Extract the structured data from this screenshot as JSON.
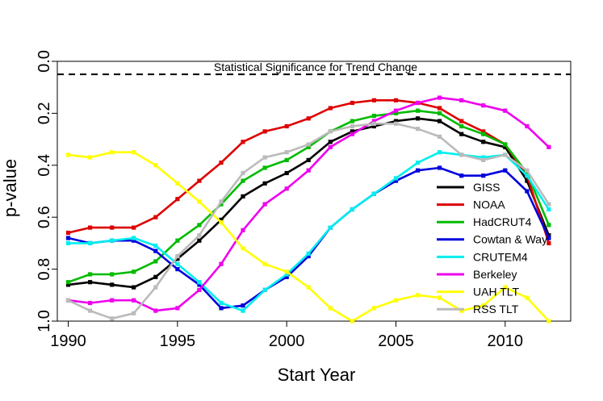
{
  "chart_data": {
    "type": "line",
    "title": "",
    "xlabel": "Start Year",
    "ylabel": "p-value",
    "xlim": [
      1989.5,
      2013
    ],
    "ylim": [
      0.0,
      1.0
    ],
    "y_reversed": true,
    "x_ticks": [
      1990,
      1995,
      2000,
      2005,
      2010
    ],
    "y_ticks": [
      0.0,
      0.2,
      0.4,
      0.6,
      0.8,
      1.0
    ],
    "y_tick_labels": [
      "0.0",
      "0.2",
      "0.4",
      "0.6",
      "0.8",
      "1.0"
    ],
    "grid": false,
    "legend_position": "bottom-right",
    "x": [
      1990,
      1991,
      1992,
      1993,
      1994,
      1995,
      1996,
      1997,
      1998,
      1999,
      2000,
      2001,
      2002,
      2003,
      2004,
      2005,
      2006,
      2007,
      2008,
      2009,
      2010,
      2011,
      2012
    ],
    "reference_line": {
      "y": 0.05,
      "style": "dashed",
      "label": "Statistical Significance for Trend Change"
    },
    "series": [
      {
        "name": "GISS",
        "color": "#000000",
        "values": [
          0.86,
          0.85,
          0.86,
          0.87,
          0.83,
          0.76,
          0.69,
          0.61,
          0.52,
          0.47,
          0.43,
          0.38,
          0.31,
          0.27,
          0.25,
          0.23,
          0.22,
          0.23,
          0.28,
          0.31,
          0.33,
          0.46,
          0.67
        ]
      },
      {
        "name": "NOAA",
        "color": "#dd0000",
        "values": [
          0.66,
          0.64,
          0.64,
          0.64,
          0.6,
          0.53,
          0.46,
          0.39,
          0.31,
          0.27,
          0.25,
          0.22,
          0.18,
          0.16,
          0.15,
          0.15,
          0.16,
          0.18,
          0.23,
          0.27,
          0.32,
          0.44,
          0.7
        ]
      },
      {
        "name": "HadCRUT4",
        "color": "#00bb00",
        "values": [
          0.85,
          0.82,
          0.82,
          0.81,
          0.77,
          0.69,
          0.63,
          0.55,
          0.46,
          0.41,
          0.38,
          0.33,
          0.27,
          0.23,
          0.21,
          0.2,
          0.19,
          0.2,
          0.25,
          0.28,
          0.32,
          0.43,
          0.63
        ]
      },
      {
        "name": "Cowtan & Way",
        "color": "#0000dd",
        "values": [
          0.68,
          0.7,
          0.69,
          0.69,
          0.73,
          0.8,
          0.86,
          0.95,
          0.94,
          0.88,
          0.83,
          0.75,
          0.64,
          0.57,
          0.51,
          0.46,
          0.42,
          0.41,
          0.44,
          0.44,
          0.42,
          0.5,
          0.68
        ]
      },
      {
        "name": "CRUTEM4",
        "color": "#00eeee",
        "values": [
          0.7,
          0.7,
          0.69,
          0.68,
          0.71,
          0.78,
          0.85,
          0.93,
          0.96,
          0.88,
          0.82,
          0.74,
          0.64,
          0.57,
          0.51,
          0.45,
          0.39,
          0.35,
          0.36,
          0.37,
          0.36,
          0.44,
          0.57
        ]
      },
      {
        "name": "Berkeley",
        "color": "#ee00ee",
        "values": [
          0.92,
          0.93,
          0.92,
          0.92,
          0.96,
          0.95,
          0.88,
          0.78,
          0.65,
          0.55,
          0.49,
          0.42,
          0.33,
          0.28,
          0.23,
          0.19,
          0.16,
          0.14,
          0.15,
          0.17,
          0.19,
          0.25,
          0.33
        ]
      },
      {
        "name": "UAH TLT",
        "color": "#ffff00",
        "values": [
          0.36,
          0.37,
          0.35,
          0.35,
          0.4,
          0.47,
          0.54,
          0.62,
          0.72,
          0.78,
          0.81,
          0.87,
          0.95,
          1.0,
          0.95,
          0.92,
          0.9,
          0.91,
          0.96,
          0.94,
          0.87,
          0.91,
          1.0
        ]
      },
      {
        "name": "RSS TLT",
        "color": "#bbbbbb",
        "values": [
          0.92,
          0.96,
          0.99,
          0.97,
          0.87,
          0.75,
          0.67,
          0.54,
          0.43,
          0.37,
          0.35,
          0.32,
          0.27,
          0.25,
          0.24,
          0.24,
          0.26,
          0.29,
          0.36,
          0.38,
          0.36,
          0.42,
          0.55
        ]
      }
    ]
  }
}
